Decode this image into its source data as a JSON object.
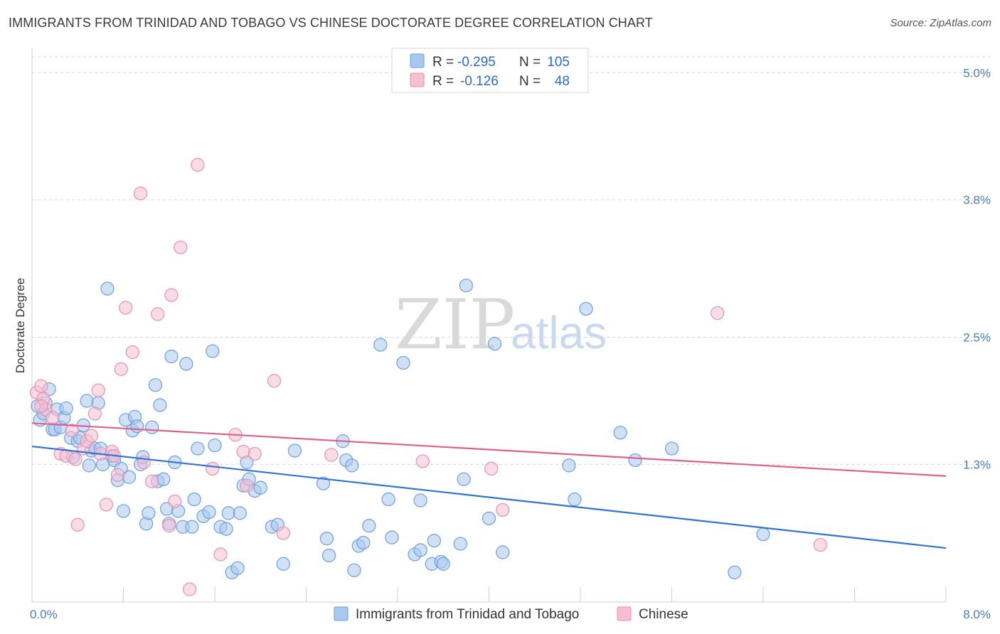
{
  "title": "IMMIGRANTS FROM TRINIDAD AND TOBAGO VS CHINESE DOCTORATE DEGREE CORRELATION CHART",
  "source": "Source: ZipAtlas.com",
  "watermark": {
    "part1": "ZIP",
    "part2": "atlas"
  },
  "colors": {
    "blue_fill": "#a9c8ef",
    "blue_stroke": "#6a9fe0",
    "blue_line": "#2f73d4",
    "pink_fill": "#f6bfd1",
    "pink_stroke": "#e890ad",
    "pink_line": "#e0608d",
    "grid": "#d8d8d8",
    "tick_label": "#4a7cc9"
  },
  "legend": {
    "r_label": "R =",
    "n_label": "N =",
    "series": [
      {
        "r": "-0.295",
        "n": "105"
      },
      {
        "r": "-0.126",
        "n": "48"
      }
    ]
  },
  "chart_data": {
    "type": "scatter",
    "xlabel": "",
    "ylabel": "Doctorate Degree",
    "xlim": [
      0,
      8
    ],
    "ylim": [
      0,
      5.15
    ],
    "x_tick_labels": [
      "0.0%",
      "8.0%"
    ],
    "y_ticks": [
      1.3,
      2.5,
      3.8,
      5.0
    ],
    "y_tick_labels": [
      "1.3%",
      "2.5%",
      "3.8%",
      "5.0%"
    ],
    "series": [
      {
        "name": "Immigrants from Trinidad and Tobago",
        "trend": {
          "x": [
            0,
            8
          ],
          "y": [
            1.47,
            0.51
          ]
        },
        "points": [
          [
            0.05,
            1.85
          ],
          [
            0.07,
            1.72
          ],
          [
            0.1,
            1.78
          ],
          [
            0.12,
            1.88
          ],
          [
            0.15,
            2.01
          ],
          [
            0.18,
            1.63
          ],
          [
            0.2,
            1.63
          ],
          [
            0.22,
            1.82
          ],
          [
            0.25,
            1.65
          ],
          [
            0.28,
            1.74
          ],
          [
            0.3,
            1.83
          ],
          [
            0.34,
            1.55
          ],
          [
            0.36,
            1.37
          ],
          [
            0.4,
            1.52
          ],
          [
            0.42,
            1.55
          ],
          [
            0.45,
            1.67
          ],
          [
            0.48,
            1.9
          ],
          [
            0.5,
            1.29
          ],
          [
            0.52,
            1.43
          ],
          [
            0.55,
            1.45
          ],
          [
            0.58,
            1.88
          ],
          [
            0.6,
            1.45
          ],
          [
            0.62,
            1.3
          ],
          [
            0.66,
            2.96
          ],
          [
            0.7,
            1.38
          ],
          [
            0.72,
            1.34
          ],
          [
            0.75,
            1.15
          ],
          [
            0.78,
            1.26
          ],
          [
            0.8,
            0.86
          ],
          [
            0.82,
            1.72
          ],
          [
            0.85,
            1.18
          ],
          [
            0.88,
            1.62
          ],
          [
            0.9,
            1.75
          ],
          [
            0.92,
            1.66
          ],
          [
            0.95,
            1.3
          ],
          [
            0.97,
            1.37
          ],
          [
            1.0,
            0.74
          ],
          [
            1.02,
            0.84
          ],
          [
            1.05,
            1.65
          ],
          [
            1.08,
            2.05
          ],
          [
            1.1,
            1.14
          ],
          [
            1.12,
            1.86
          ],
          [
            1.15,
            1.16
          ],
          [
            1.18,
            0.88
          ],
          [
            1.2,
            0.74
          ],
          [
            1.22,
            2.32
          ],
          [
            1.25,
            1.32
          ],
          [
            1.28,
            0.86
          ],
          [
            1.32,
            0.71
          ],
          [
            1.35,
            2.25
          ],
          [
            1.4,
            0.71
          ],
          [
            1.42,
            0.97
          ],
          [
            1.45,
            1.45
          ],
          [
            1.5,
            0.81
          ],
          [
            1.55,
            0.85
          ],
          [
            1.58,
            2.37
          ],
          [
            1.6,
            1.48
          ],
          [
            1.65,
            0.71
          ],
          [
            1.7,
            0.69
          ],
          [
            1.72,
            0.84
          ],
          [
            1.75,
            0.28
          ],
          [
            1.8,
            0.32
          ],
          [
            1.82,
            0.84
          ],
          [
            1.85,
            1.1
          ],
          [
            1.88,
            1.32
          ],
          [
            1.9,
            1.16
          ],
          [
            1.95,
            1.05
          ],
          [
            2.0,
            1.08
          ],
          [
            2.1,
            0.71
          ],
          [
            2.15,
            0.73
          ],
          [
            2.2,
            0.36
          ],
          [
            2.3,
            1.43
          ],
          [
            2.55,
            1.12
          ],
          [
            2.58,
            0.6
          ],
          [
            2.6,
            0.44
          ],
          [
            2.72,
            1.52
          ],
          [
            2.75,
            1.34
          ],
          [
            2.8,
            1.29
          ],
          [
            2.82,
            0.3
          ],
          [
            2.86,
            0.53
          ],
          [
            2.9,
            0.56
          ],
          [
            2.95,
            0.72
          ],
          [
            3.05,
            2.43
          ],
          [
            3.12,
            0.97
          ],
          [
            3.15,
            0.61
          ],
          [
            3.25,
            2.26
          ],
          [
            3.35,
            0.45
          ],
          [
            3.4,
            0.96
          ],
          [
            3.4,
            0.49
          ],
          [
            3.5,
            0.36
          ],
          [
            3.52,
            0.58
          ],
          [
            3.58,
            0.38
          ],
          [
            3.6,
            0.36
          ],
          [
            3.75,
            0.55
          ],
          [
            3.78,
            1.16
          ],
          [
            3.8,
            2.99
          ],
          [
            4.0,
            0.79
          ],
          [
            4.05,
            2.44
          ],
          [
            4.12,
            0.47
          ],
          [
            4.7,
            1.29
          ],
          [
            4.75,
            0.97
          ],
          [
            4.85,
            2.77
          ],
          [
            5.15,
            1.6
          ],
          [
            5.28,
            1.34
          ],
          [
            5.6,
            1.45
          ],
          [
            6.4,
            0.64
          ],
          [
            6.15,
            0.28
          ]
        ]
      },
      {
        "name": "Chinese",
        "trend": {
          "x": [
            0,
            8
          ],
          "y": [
            1.69,
            1.19
          ]
        },
        "points": [
          [
            0.04,
            1.98
          ],
          [
            0.08,
            2.04
          ],
          [
            0.1,
            1.92
          ],
          [
            0.12,
            1.82
          ],
          [
            0.18,
            1.74
          ],
          [
            0.25,
            1.4
          ],
          [
            0.3,
            1.38
          ],
          [
            0.35,
            1.62
          ],
          [
            0.38,
            1.35
          ],
          [
            0.4,
            0.73
          ],
          [
            0.45,
            1.45
          ],
          [
            0.48,
            1.52
          ],
          [
            0.52,
            1.57
          ],
          [
            0.55,
            1.78
          ],
          [
            0.58,
            2.0
          ],
          [
            0.6,
            1.4
          ],
          [
            0.65,
            0.92
          ],
          [
            0.7,
            1.42
          ],
          [
            0.72,
            1.38
          ],
          [
            0.75,
            1.2
          ],
          [
            0.78,
            2.2
          ],
          [
            0.82,
            2.78
          ],
          [
            0.88,
            2.36
          ],
          [
            0.95,
            3.86
          ],
          [
            0.98,
            1.32
          ],
          [
            1.05,
            1.14
          ],
          [
            1.1,
            2.72
          ],
          [
            1.2,
            0.72
          ],
          [
            1.22,
            2.9
          ],
          [
            1.25,
            0.95
          ],
          [
            1.3,
            3.35
          ],
          [
            1.38,
            0.12
          ],
          [
            1.45,
            4.13
          ],
          [
            1.58,
            1.26
          ],
          [
            1.65,
            0.45
          ],
          [
            1.78,
            1.58
          ],
          [
            1.85,
            1.42
          ],
          [
            1.88,
            1.1
          ],
          [
            1.95,
            1.4
          ],
          [
            2.12,
            2.09
          ],
          [
            2.2,
            0.65
          ],
          [
            2.62,
            1.39
          ],
          [
            3.42,
            1.33
          ],
          [
            4.02,
            1.26
          ],
          [
            4.12,
            0.87
          ],
          [
            6.0,
            2.73
          ],
          [
            6.9,
            0.54
          ],
          [
            0.08,
            1.85
          ]
        ]
      }
    ]
  },
  "bottom_legend": {
    "items": [
      "Immigrants from Trinidad and Tobago",
      "Chinese"
    ]
  }
}
